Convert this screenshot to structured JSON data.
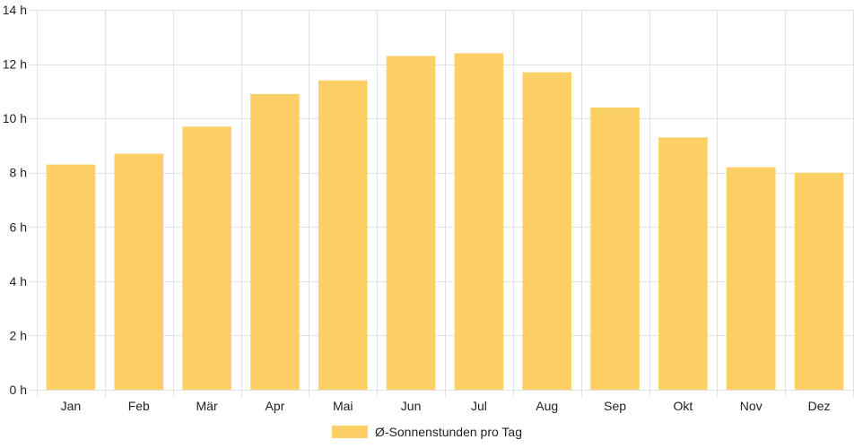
{
  "chart_data": {
    "type": "bar",
    "categories": [
      "Jan",
      "Feb",
      "Mär",
      "Apr",
      "Mai",
      "Jun",
      "Jul",
      "Aug",
      "Sep",
      "Okt",
      "Nov",
      "Dez"
    ],
    "series": [
      {
        "name": "Ø-Sonnenstunden pro Tag",
        "values": [
          8.3,
          8.7,
          9.7,
          10.9,
          11.4,
          12.3,
          12.4,
          11.7,
          10.4,
          9.3,
          8.2,
          8.0
        ]
      }
    ],
    "y_unit": "h",
    "ylim": [
      0,
      14
    ],
    "yticks": [
      0,
      2,
      4,
      6,
      8,
      10,
      12,
      14
    ],
    "y_tick_labels": [
      "0 h",
      "2 h",
      "4 h",
      "6 h",
      "8 h",
      "10 h",
      "12 h",
      "14 h"
    ],
    "grid": true,
    "legend_position": "bottom",
    "bar_color": "#fdd066"
  }
}
